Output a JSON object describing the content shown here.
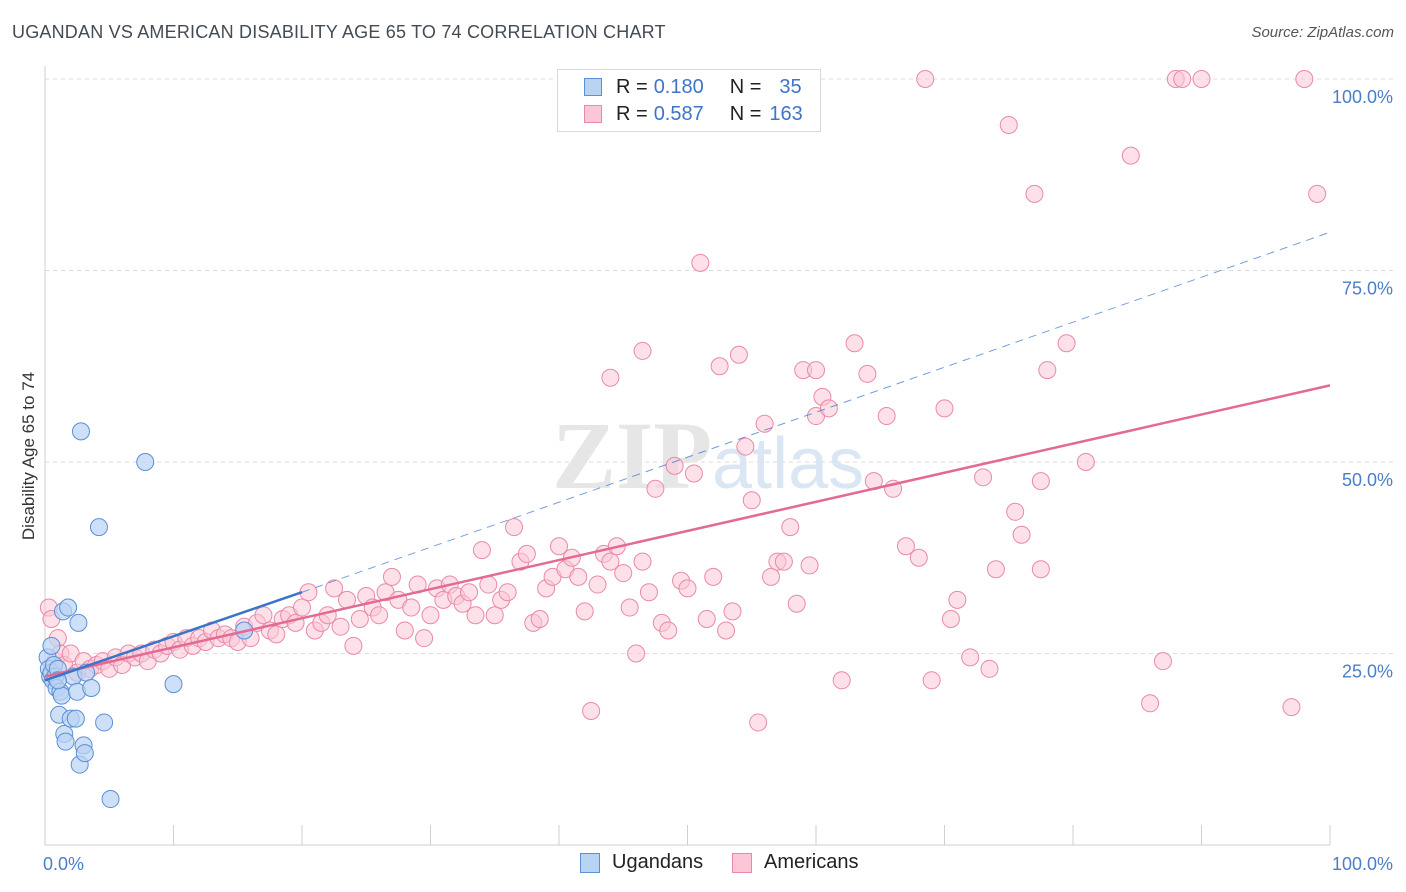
{
  "title": "UGANDAN VS AMERICAN DISABILITY AGE 65 TO 74 CORRELATION CHART",
  "source": "Source: ZipAtlas.com",
  "watermark": "ZIPatlas",
  "colors": {
    "ugandans_fill": "#b9d3f3",
    "ugandans_stroke": "#5b8fd6",
    "ugandans_line": "#3a74c9",
    "americans_fill": "#fbc6d6",
    "americans_stroke": "#e88aa8",
    "americans_line": "#e26a93",
    "tick_text": "#4a7ec7",
    "grid": "#dcdcdc"
  },
  "legend": {
    "row1": {
      "r_label": "R = ",
      "r_value": "0.180",
      "n_label": "N = ",
      "n_value": "35"
    },
    "row2": {
      "r_label": "R = ",
      "r_value": "0.587",
      "n_label": "N = ",
      "n_value": "163"
    }
  },
  "bottom_legend": {
    "ugandans": "Ugandans",
    "americans": "Americans"
  },
  "chart_data": {
    "type": "scatter",
    "title": "UGANDAN VS AMERICAN DISABILITY AGE 65 TO 74 CORRELATION CHART",
    "xlabel": "",
    "ylabel": "Disability Age 65 to 74",
    "xlim": [
      0,
      100
    ],
    "ylim": [
      0,
      100
    ],
    "x_tick_labels": [
      "0.0%",
      "100.0%"
    ],
    "y_ticks": [
      25,
      50,
      75,
      100
    ],
    "y_tick_labels": [
      "25.0%",
      "50.0%",
      "75.0%",
      "100.0%"
    ],
    "series": [
      {
        "name": "Ugandans",
        "R": 0.18,
        "N": 35,
        "trend": {
          "x": [
            0,
            20
          ],
          "y": [
            21.5,
            33
          ]
        },
        "dashed_extension": {
          "x": [
            20,
            100
          ],
          "y": [
            33,
            80
          ]
        },
        "points": [
          [
            0.2,
            24.5
          ],
          [
            0.3,
            23
          ],
          [
            0.4,
            22
          ],
          [
            0.5,
            22.5
          ],
          [
            0.6,
            21.5
          ],
          [
            0.7,
            23.5
          ],
          [
            0.8,
            22
          ],
          [
            0.9,
            20.5
          ],
          [
            1.0,
            23
          ],
          [
            1.1,
            17
          ],
          [
            1.2,
            20
          ],
          [
            1.3,
            19.5
          ],
          [
            1.4,
            30.5
          ],
          [
            1.5,
            14.5
          ],
          [
            1.6,
            13.5
          ],
          [
            1.8,
            31
          ],
          [
            2.0,
            16.5
          ],
          [
            2.2,
            22
          ],
          [
            2.4,
            16.5
          ],
          [
            2.5,
            20
          ],
          [
            2.7,
            10.5
          ],
          [
            2.6,
            29
          ],
          [
            2.8,
            54
          ],
          [
            3.0,
            13
          ],
          [
            3.1,
            12
          ],
          [
            3.2,
            22.5
          ],
          [
            3.6,
            20.5
          ],
          [
            4.2,
            41.5
          ],
          [
            4.6,
            16
          ],
          [
            5.1,
            6
          ],
          [
            7.8,
            50
          ],
          [
            10.0,
            21
          ],
          [
            15.5,
            28
          ],
          [
            0.5,
            26
          ],
          [
            1.0,
            21.5
          ]
        ]
      },
      {
        "name": "Americans",
        "R": 0.587,
        "N": 163,
        "trend": {
          "x": [
            0,
            100
          ],
          "y": [
            22,
            60
          ]
        },
        "points": [
          [
            0.3,
            31
          ],
          [
            0.5,
            29.5
          ],
          [
            0.8,
            24
          ],
          [
            1.0,
            27
          ],
          [
            1.2,
            25
          ],
          [
            1.5,
            23.5
          ],
          [
            2.0,
            25
          ],
          [
            2.5,
            22.5
          ],
          [
            3.0,
            24
          ],
          [
            3.5,
            23
          ],
          [
            4.0,
            23.5
          ],
          [
            4.5,
            24
          ],
          [
            5.0,
            23
          ],
          [
            5.5,
            24.5
          ],
          [
            6.0,
            23.5
          ],
          [
            6.5,
            25
          ],
          [
            7.0,
            24.5
          ],
          [
            7.5,
            25
          ],
          [
            8.0,
            24
          ],
          [
            8.5,
            25.5
          ],
          [
            9.0,
            25
          ],
          [
            9.5,
            26
          ],
          [
            10.0,
            26.5
          ],
          [
            10.5,
            25.5
          ],
          [
            11.0,
            27
          ],
          [
            11.5,
            26
          ],
          [
            12.0,
            27
          ],
          [
            12.5,
            26.5
          ],
          [
            13.0,
            28
          ],
          [
            13.5,
            27
          ],
          [
            14.0,
            27.5
          ],
          [
            14.5,
            27
          ],
          [
            15.0,
            26.5
          ],
          [
            15.5,
            28.5
          ],
          [
            16.0,
            27
          ],
          [
            16.5,
            29
          ],
          [
            17.0,
            30
          ],
          [
            17.5,
            28
          ],
          [
            18.0,
            27.5
          ],
          [
            18.5,
            29.5
          ],
          [
            19.0,
            30
          ],
          [
            19.5,
            29
          ],
          [
            20.0,
            31
          ],
          [
            20.5,
            33
          ],
          [
            21.0,
            28
          ],
          [
            21.5,
            29
          ],
          [
            22.0,
            30
          ],
          [
            22.5,
            33.5
          ],
          [
            23.0,
            28.5
          ],
          [
            23.5,
            32
          ],
          [
            24.0,
            26
          ],
          [
            24.5,
            29.5
          ],
          [
            25.0,
            32.5
          ],
          [
            25.5,
            31
          ],
          [
            26.0,
            30
          ],
          [
            26.5,
            33
          ],
          [
            27.0,
            35
          ],
          [
            27.5,
            32
          ],
          [
            28.0,
            28
          ],
          [
            28.5,
            31
          ],
          [
            29.0,
            34
          ],
          [
            29.5,
            27
          ],
          [
            30.0,
            30
          ],
          [
            30.5,
            33.5
          ],
          [
            31.0,
            32
          ],
          [
            31.5,
            34
          ],
          [
            32.0,
            32.5
          ],
          [
            32.5,
            31.5
          ],
          [
            33.0,
            33
          ],
          [
            33.5,
            30
          ],
          [
            34.0,
            38.5
          ],
          [
            34.5,
            34
          ],
          [
            35.0,
            30
          ],
          [
            35.5,
            32
          ],
          [
            36.0,
            33
          ],
          [
            36.5,
            41.5
          ],
          [
            37.0,
            37
          ],
          [
            37.5,
            38
          ],
          [
            38.0,
            29
          ],
          [
            38.5,
            29.5
          ],
          [
            39.0,
            33.5
          ],
          [
            39.5,
            35
          ],
          [
            40.0,
            39
          ],
          [
            40.5,
            36
          ],
          [
            41.0,
            37.5
          ],
          [
            41.5,
            35
          ],
          [
            42.0,
            30.5
          ],
          [
            42.5,
            17.5
          ],
          [
            43.0,
            34
          ],
          [
            43.5,
            38
          ],
          [
            44.0,
            37
          ],
          [
            44.5,
            39
          ],
          [
            45.0,
            35.5
          ],
          [
            45.5,
            31
          ],
          [
            46.0,
            25
          ],
          [
            46.5,
            37
          ],
          [
            47.0,
            33
          ],
          [
            47.5,
            46.5
          ],
          [
            48.0,
            29
          ],
          [
            48.5,
            28
          ],
          [
            49.0,
            49.5
          ],
          [
            49.5,
            34.5
          ],
          [
            50.0,
            33.5
          ],
          [
            50.5,
            48.5
          ],
          [
            51.0,
            76
          ],
          [
            51.5,
            29.5
          ],
          [
            52.0,
            35
          ],
          [
            52.5,
            62.5
          ],
          [
            53.0,
            28
          ],
          [
            53.5,
            30.5
          ],
          [
            54.0,
            64
          ],
          [
            54.5,
            52
          ],
          [
            55.0,
            45
          ],
          [
            55.5,
            16
          ],
          [
            56.0,
            55
          ],
          [
            56.5,
            35
          ],
          [
            57.0,
            37
          ],
          [
            57.5,
            37
          ],
          [
            58.0,
            41.5
          ],
          [
            58.5,
            31.5
          ],
          [
            59.0,
            62
          ],
          [
            59.5,
            36.5
          ],
          [
            60.0,
            56
          ],
          [
            60.5,
            58.5
          ],
          [
            61.0,
            57
          ],
          [
            62.0,
            21.5
          ],
          [
            63.0,
            65.5
          ],
          [
            64.0,
            61.5
          ],
          [
            64.5,
            47.5
          ],
          [
            66.0,
            46.5
          ],
          [
            67.0,
            39
          ],
          [
            68.0,
            37.5
          ],
          [
            68.5,
            100
          ],
          [
            69.0,
            21.5
          ],
          [
            70.0,
            57
          ],
          [
            70.5,
            29.5
          ],
          [
            71.0,
            32
          ],
          [
            72.0,
            24.5
          ],
          [
            73.0,
            48
          ],
          [
            73.5,
            23
          ],
          [
            74.0,
            36
          ],
          [
            75.0,
            94
          ],
          [
            75.5,
            43.5
          ],
          [
            76.0,
            40.5
          ],
          [
            77.0,
            85
          ],
          [
            77.5,
            36
          ],
          [
            78.0,
            62
          ],
          [
            79.5,
            65.5
          ],
          [
            81.0,
            50
          ],
          [
            84.5,
            90
          ],
          [
            86.0,
            18.5
          ],
          [
            87.0,
            24
          ],
          [
            88.0,
            100
          ],
          [
            88.5,
            100
          ],
          [
            90.0,
            100
          ],
          [
            97.0,
            18
          ],
          [
            98.0,
            100
          ],
          [
            99.0,
            85
          ],
          [
            44.0,
            61
          ],
          [
            46.5,
            64.5
          ],
          [
            60.0,
            62
          ],
          [
            65.5,
            56
          ],
          [
            77.5,
            47.5
          ]
        ]
      }
    ]
  }
}
